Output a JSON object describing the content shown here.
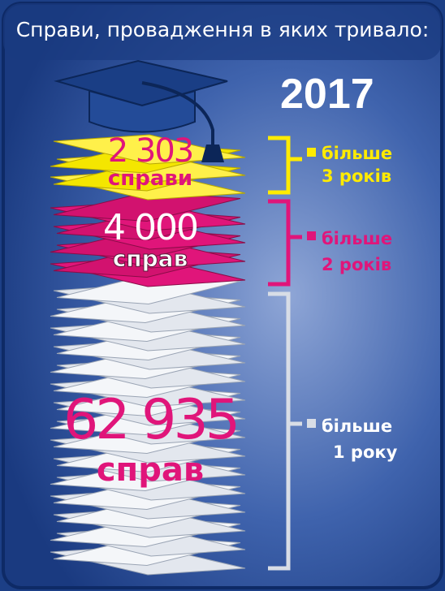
{
  "title": "Справи, провадження в яких тривало:",
  "year": "2017",
  "groups": [
    {
      "number": "2 303",
      "unit": "справи",
      "label_lines": [
        "більше",
        "3 років"
      ]
    },
    {
      "number": "4 000",
      "unit": "справ",
      "label_lines": [
        "більше",
        "2 років"
      ]
    },
    {
      "number": "62 935",
      "unit": "справ",
      "label_lines": [
        "більше",
        "1 року"
      ]
    }
  ]
}
